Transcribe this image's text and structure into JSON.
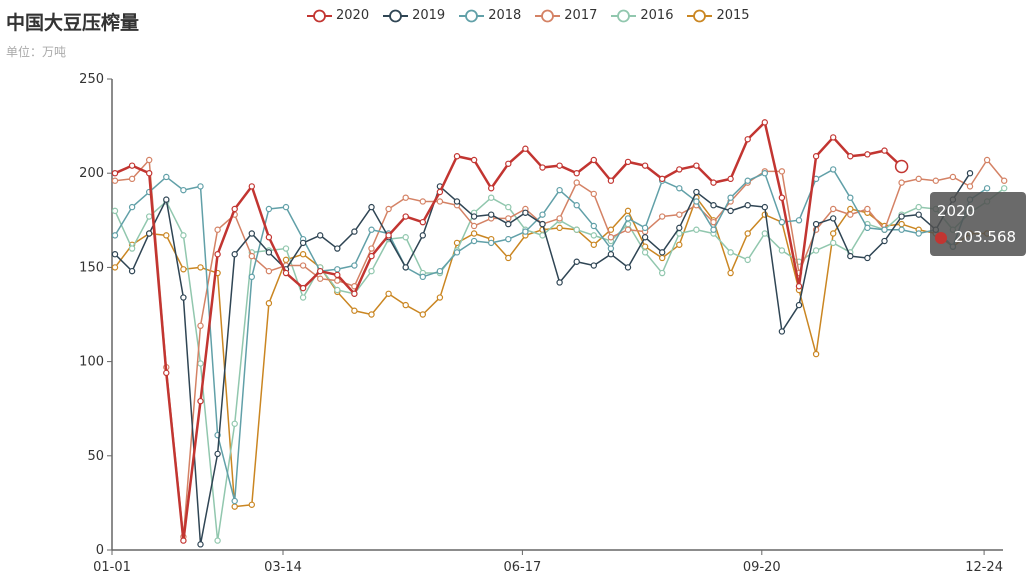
{
  "title": "中国大豆压榨量",
  "subtitle": "单位：万吨",
  "tooltip": {
    "series": "2020",
    "value": "203.568",
    "color": "#c23531"
  },
  "chart_data": {
    "type": "line",
    "title": "中国大豆压榨量",
    "subtitle": "单位：万吨",
    "xlabel": "",
    "ylabel": "",
    "ylim": [
      0,
      250
    ],
    "yticks": [
      "0",
      "50",
      "100",
      "150",
      "200",
      "250"
    ],
    "xtick_labels": [
      {
        "index": 0,
        "label": "01-01"
      },
      {
        "index": 10,
        "label": "03-14"
      },
      {
        "index": 24,
        "label": "06-17"
      },
      {
        "index": 38,
        "label": "09-20"
      },
      {
        "index": 51,
        "label": "12-24"
      }
    ],
    "legend_position": "top",
    "grid": false,
    "series": [
      {
        "name": "2020",
        "color": "#c23531",
        "values": [
          200,
          204,
          200,
          94,
          5,
          79,
          157,
          181,
          193,
          166,
          147,
          139,
          148,
          146,
          136,
          156,
          167,
          177,
          174,
          190,
          209,
          207,
          192,
          205,
          213,
          203,
          204,
          200,
          207,
          196,
          206,
          204,
          197,
          202,
          204,
          195,
          197,
          218,
          227,
          187,
          140,
          209,
          219,
          209,
          210,
          212,
          203.568
        ]
      },
      {
        "name": "2019",
        "color": "#2f4554",
        "values": [
          157,
          148,
          168,
          186,
          134,
          3,
          51,
          157,
          168,
          158,
          149,
          163,
          167,
          160,
          169,
          182,
          166,
          150,
          167,
          193,
          185,
          177,
          178,
          173,
          179,
          173,
          142,
          153,
          151,
          157,
          150,
          166,
          158,
          171,
          190,
          183,
          180,
          183,
          182,
          116,
          130,
          173,
          176,
          156,
          155,
          164,
          177,
          178,
          170,
          186,
          200
        ]
      },
      {
        "name": "2018",
        "color": "#61a0a8",
        "values": [
          167,
          182,
          190,
          198,
          191,
          193,
          61,
          26,
          145,
          181,
          182,
          165,
          148,
          149,
          151,
          170,
          168,
          150,
          145,
          148,
          158,
          164,
          163,
          165,
          169,
          178,
          191,
          183,
          172,
          160,
          176,
          171,
          196,
          192,
          185,
          170,
          187,
          196,
          200,
          174,
          175,
          197,
          202,
          187,
          171,
          170,
          170,
          168,
          170,
          161,
          186,
          192
        ]
      },
      {
        "name": "2017",
        "color": "#d48265",
        "values": [
          196,
          197,
          207,
          97,
          7,
          119,
          170,
          178,
          156,
          148,
          151,
          151,
          144,
          143,
          140,
          160,
          181,
          187,
          185,
          185,
          183,
          172,
          176,
          176,
          181,
          173,
          176,
          195,
          189,
          166,
          170,
          169,
          177,
          178,
          183,
          174,
          185,
          195,
          201,
          201,
          147,
          170,
          181,
          178,
          181,
          170,
          195,
          197,
          196,
          198,
          193,
          207,
          196
        ]
      },
      {
        "name": "2016",
        "color": "#91c7ae",
        "values": [
          180,
          160,
          177,
          185,
          167,
          99,
          5,
          67,
          158,
          159,
          160,
          134,
          150,
          138,
          136,
          148,
          165,
          166,
          147,
          147,
          159,
          179,
          187,
          182,
          170,
          167,
          175,
          170,
          167,
          164,
          173,
          158,
          147,
          168,
          170,
          168,
          158,
          154,
          168,
          159,
          153,
          159,
          163,
          158,
          173,
          170,
          178,
          182,
          181,
          170,
          179,
          185,
          192
        ]
      },
      {
        "name": "2015",
        "color": "#ca8622",
        "values": [
          150,
          162,
          168,
          167,
          149,
          150,
          147,
          23,
          24,
          131,
          154,
          157,
          150,
          137,
          127,
          125,
          136,
          130,
          125,
          134,
          163,
          168,
          165,
          155,
          167,
          170,
          171,
          170,
          162,
          170,
          180,
          161,
          155,
          162,
          187,
          175,
          147,
          168,
          178,
          174,
          138,
          104,
          168,
          181,
          179,
          172,
          173,
          170,
          168,
          161,
          168,
          168
        ]
      }
    ]
  }
}
